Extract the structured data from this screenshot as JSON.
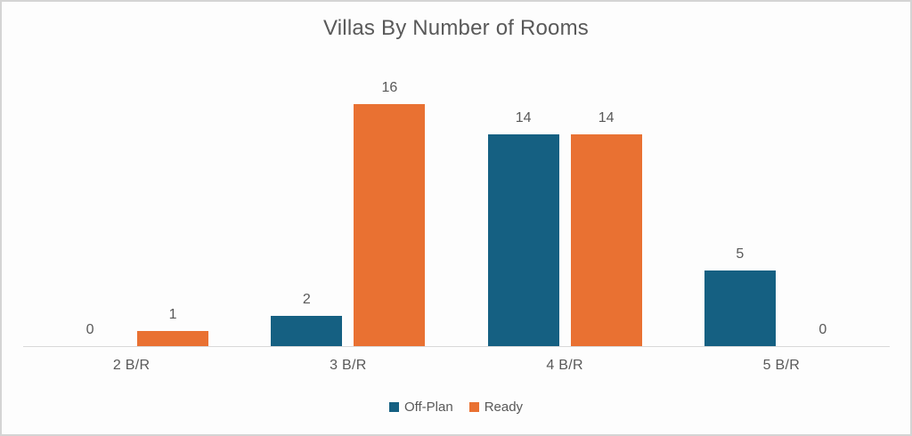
{
  "chart_data": {
    "type": "bar",
    "title": "Villas By Number of Rooms",
    "categories": [
      "2 B/R",
      "3 B/R",
      "4 B/R",
      "5 B/R"
    ],
    "series": [
      {
        "name": "Off-Plan",
        "color": "#156082",
        "values": [
          0,
          2,
          14,
          5
        ]
      },
      {
        "name": "Ready",
        "color": "#E97132",
        "values": [
          1,
          16,
          14,
          0
        ]
      }
    ],
    "ylim": [
      0,
      16
    ],
    "grid": false,
    "data_labels": true,
    "legend_position": "bottom",
    "axis_line_color": "#D9D9D9",
    "text_color": "#595959",
    "xlabel": "",
    "ylabel": ""
  }
}
